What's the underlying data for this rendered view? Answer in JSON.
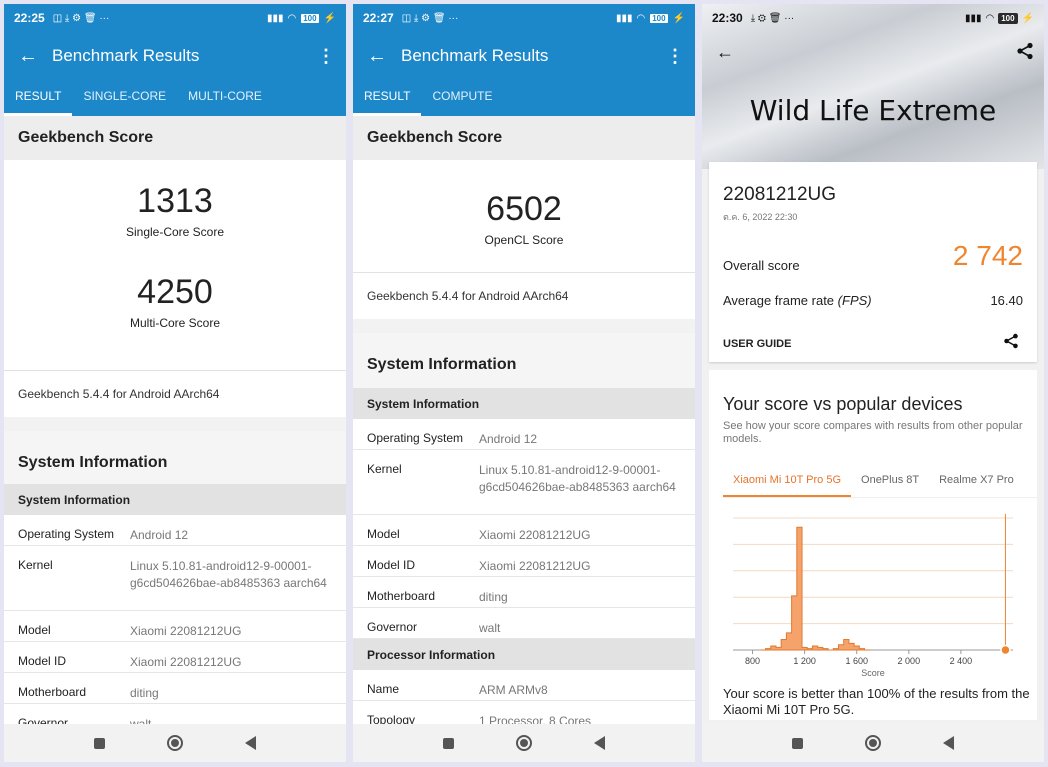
{
  "phone1": {
    "status": {
      "time": "22:25",
      "battery": "100"
    },
    "title": "Benchmark Results",
    "tabs": [
      "RESULT",
      "SINGLE-CORE",
      "MULTI-CORE"
    ],
    "score_header": "Geekbench Score",
    "scores": [
      {
        "value": "1313",
        "label": "Single-Core Score"
      },
      {
        "value": "4250",
        "label": "Multi-Core Score"
      }
    ],
    "version": "Geekbench 5.4.4 for Android AArch64",
    "sys_header": "System Information",
    "sys_subheader": "System Information",
    "rows": [
      {
        "k": "Operating System",
        "v": "Android 12"
      },
      {
        "k": "Kernel",
        "v": "Linux 5.10.81-android12-9-00001-g6cd504626bae-ab8485363 aarch64"
      },
      {
        "k": "Model",
        "v": "Xiaomi 22081212UG"
      },
      {
        "k": "Model ID",
        "v": "Xiaomi 22081212UG"
      },
      {
        "k": "Motherboard",
        "v": "diting"
      },
      {
        "k": "Governor",
        "v": "walt"
      }
    ]
  },
  "phone2": {
    "status": {
      "time": "22:27",
      "battery": "100"
    },
    "title": "Benchmark Results",
    "tabs": [
      "RESULT",
      "COMPUTE"
    ],
    "score_header": "Geekbench Score",
    "score": {
      "value": "6502",
      "label": "OpenCL Score"
    },
    "version": "Geekbench 5.4.4 for Android AArch64",
    "sys_header": "System Information",
    "sys_subheader": "System Information",
    "rows": [
      {
        "k": "Operating System",
        "v": "Android 12"
      },
      {
        "k": "Kernel",
        "v": "Linux 5.10.81-android12-9-00001-g6cd504626bae-ab8485363 aarch64"
      },
      {
        "k": "Model",
        "v": "Xiaomi 22081212UG"
      },
      {
        "k": "Model ID",
        "v": "Xiaomi 22081212UG"
      },
      {
        "k": "Motherboard",
        "v": "diting"
      },
      {
        "k": "Governor",
        "v": "walt"
      }
    ],
    "proc_subheader": "Processor Information",
    "proc_rows": [
      {
        "k": "Name",
        "v": "ARM ARMv8"
      },
      {
        "k": "Topology",
        "v": "1 Processor, 8 Cores"
      }
    ]
  },
  "phone3": {
    "status": {
      "time": "22:30",
      "battery": "100"
    },
    "title": "Wild Life Extreme",
    "device": "22081212UG",
    "date": "ต.ค. 6, 2022 22:30",
    "overall_label": "Overall score",
    "overall_value": "2 742",
    "fps_label": "Average frame rate",
    "fps_unit": "(FPS)",
    "fps_value": "16.40",
    "user_guide": "USER GUIDE",
    "cmp_title": "Your score vs popular devices",
    "cmp_sub": "See how your score compares with results from other popular models.",
    "device_tabs": [
      "Xiaomi Mi 10T Pro 5G",
      "OnePlus 8T",
      "Realme X7 Pro"
    ],
    "better_text": "Your score is better than 100% of the results from the Xiaomi Mi 10T Pro 5G."
  },
  "colors": {
    "appbar": "#1c87c9",
    "accent": "#f08530"
  },
  "chart_data": {
    "type": "area",
    "xlabel": "Score",
    "x_ticks": [
      800,
      1200,
      1600,
      2000,
      2400
    ],
    "x_tick_labels": [
      "800",
      "1 200",
      "1 600",
      "2 000",
      "2 400"
    ],
    "xlim": [
      650,
      2800
    ],
    "ylim": [
      0,
      1.0
    ],
    "x": [
      880,
      920,
      960,
      1000,
      1040,
      1080,
      1120,
      1160,
      1200,
      1240,
      1280,
      1320,
      1360,
      1400,
      1440,
      1480,
      1520,
      1560,
      1600,
      1640,
      1680
    ],
    "values": [
      0.0,
      0.01,
      0.03,
      0.02,
      0.08,
      0.13,
      0.41,
      0.93,
      0.02,
      0.01,
      0.03,
      0.02,
      0.01,
      0.0,
      0.01,
      0.04,
      0.08,
      0.05,
      0.03,
      0.01,
      0.0
    ],
    "marker_score": 2742
  }
}
